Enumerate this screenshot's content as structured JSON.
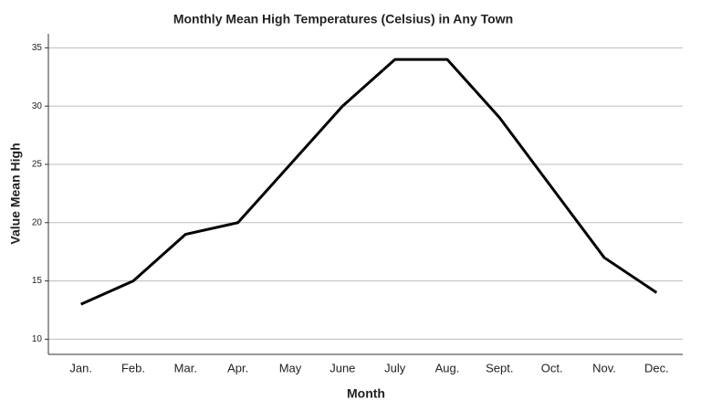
{
  "chart_data": {
    "type": "line",
    "title": "Monthly Mean High Temperatures (Celsius) in Any Town",
    "x_label": "Month",
    "y_label": "Value Mean High",
    "categories": [
      "Jan.",
      "Feb.",
      "Mar.",
      "Apr.",
      "May",
      "June",
      "July",
      "Aug.",
      "Sept.",
      "Oct.",
      "Nov.",
      "Dec."
    ],
    "values": [
      13,
      15,
      19,
      20,
      25,
      30,
      34,
      34,
      29,
      23,
      17,
      14
    ],
    "color": "#000000",
    "ylim": [
      8.7,
      36.2
    ],
    "yticks": [
      10,
      15,
      20,
      25,
      30,
      35
    ],
    "grid": true
  }
}
